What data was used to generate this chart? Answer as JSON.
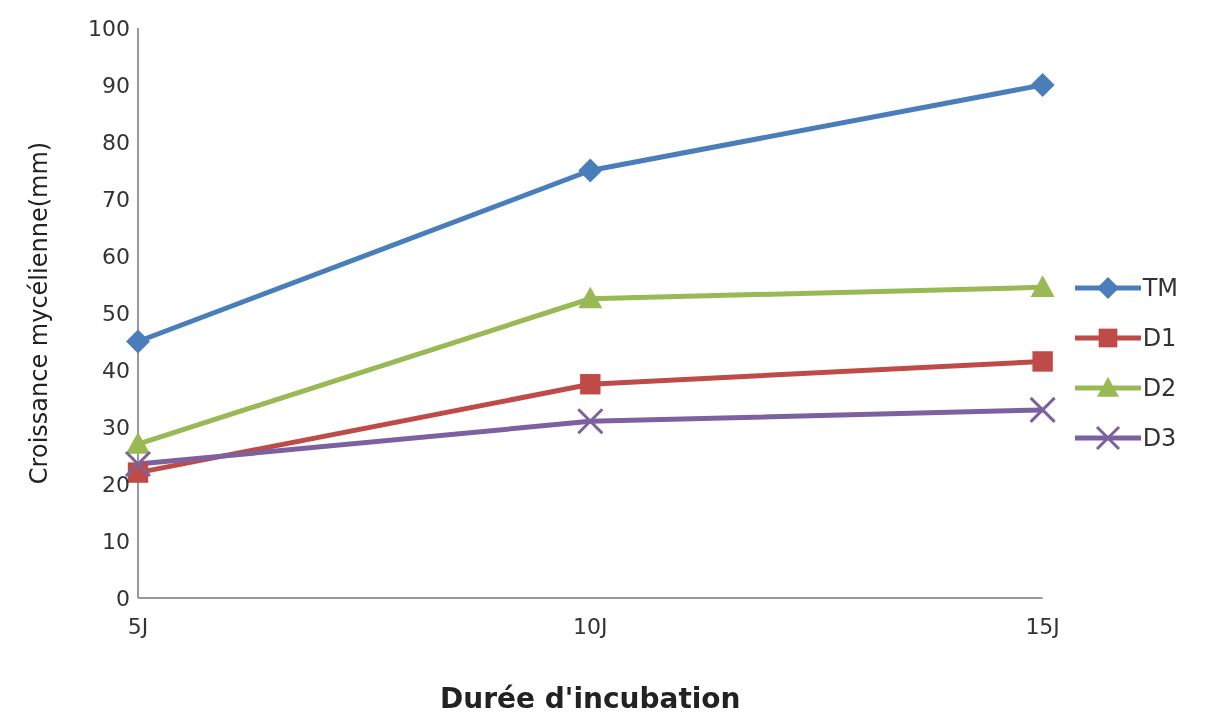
{
  "chart_data": {
    "type": "line",
    "xlabel": "Durée d'incubation",
    "ylabel": "Croissance mycélienne(mm)",
    "categories": [
      "5J",
      "10J",
      "15J"
    ],
    "ylim": [
      0,
      100
    ],
    "yticks": [
      0,
      10,
      20,
      30,
      40,
      50,
      60,
      70,
      80,
      90,
      100
    ],
    "grid": false,
    "legend": "right",
    "line_style": "solid",
    "series": [
      {
        "name": "TM",
        "color": "#4a7ebb",
        "marker": "diamond",
        "values": [
          45,
          75,
          90
        ]
      },
      {
        "name": "D1",
        "color": "#be4b48",
        "marker": "square",
        "values": [
          22,
          37.5,
          41.5
        ]
      },
      {
        "name": "D2",
        "color": "#98b954",
        "marker": "triangle",
        "values": [
          27,
          52.5,
          54.5
        ]
      },
      {
        "name": "D3",
        "color": "#7d60a0",
        "marker": "cross",
        "values": [
          23.5,
          31,
          33
        ]
      }
    ]
  }
}
